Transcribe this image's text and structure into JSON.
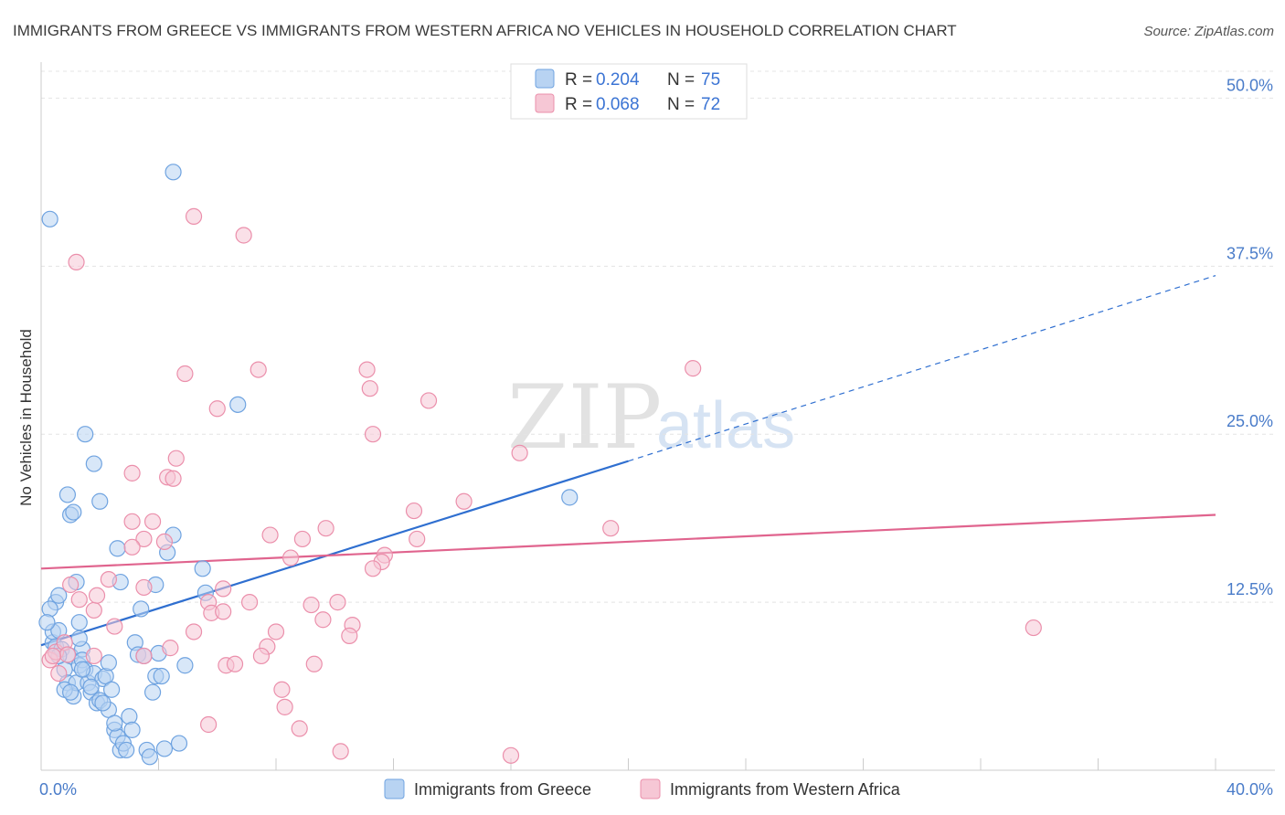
{
  "chart_data": {
    "type": "scatter",
    "title": "IMMIGRANTS FROM GREECE VS IMMIGRANTS FROM WESTERN AFRICA NO VEHICLES IN HOUSEHOLD CORRELATION CHART",
    "source": "Source: ZipAtlas.com",
    "xlabel": "",
    "ylabel": "No Vehicles in Household",
    "xlim": [
      0,
      40
    ],
    "ylim": [
      0,
      52
    ],
    "x_ticks": [
      0,
      40
    ],
    "x_tick_labels": [
      "0.0%",
      "40.0%"
    ],
    "y_ticks": [
      12.5,
      25,
      37.5,
      50
    ],
    "y_tick_labels": [
      "12.5%",
      "25.0%",
      "37.5%",
      "50.0%"
    ],
    "grid": true,
    "watermark": {
      "zip": "ZIP",
      "atlas": "atlas"
    },
    "legend": {
      "position": "top-center",
      "rows": [
        {
          "r_label": "R = ",
          "r_value": "0.204",
          "n_label": "N = ",
          "n_value": "75"
        },
        {
          "r_label": "R = ",
          "r_value": "0.068",
          "n_label": "N = ",
          "n_value": "72"
        }
      ]
    },
    "series": [
      {
        "name": "Immigrants from Greece",
        "color": "#6fa3e0",
        "fill": "#b8d3f2",
        "line_color": "#2f6fd0",
        "trend": {
          "x0": 0,
          "y0": 9.3,
          "x1": 20,
          "y1": 23.0,
          "dash_to_x": 40,
          "dash_to_y": 36.8
        },
        "points": [
          [
            0.3,
            41
          ],
          [
            0.4,
            9.5
          ],
          [
            0.5,
            12.5
          ],
          [
            0.6,
            13
          ],
          [
            0.4,
            10.3
          ],
          [
            0.5,
            9.2
          ],
          [
            0.6,
            10.4
          ],
          [
            0.7,
            9
          ],
          [
            0.8,
            7.5
          ],
          [
            0.9,
            6.5
          ],
          [
            1,
            8.5
          ],
          [
            1.1,
            5.5
          ],
          [
            1.2,
            6.5
          ],
          [
            1.3,
            7.8
          ],
          [
            1.4,
            9
          ],
          [
            0.3,
            12
          ],
          [
            0.2,
            11
          ],
          [
            0.9,
            20.5
          ],
          [
            1,
            19
          ],
          [
            1.1,
            19.2
          ],
          [
            1.2,
            14
          ],
          [
            1.3,
            9.8
          ],
          [
            1.4,
            8.2
          ],
          [
            1.5,
            7.5
          ],
          [
            1.6,
            6.5
          ],
          [
            1.7,
            5.8
          ],
          [
            1.8,
            7.2
          ],
          [
            1.9,
            5
          ],
          [
            2,
            5.2
          ],
          [
            2.1,
            6.8
          ],
          [
            2.2,
            7
          ],
          [
            2.3,
            4.5
          ],
          [
            2.4,
            6
          ],
          [
            2.5,
            3
          ],
          [
            2.6,
            2.5
          ],
          [
            2.7,
            1.5
          ],
          [
            2.8,
            2
          ],
          [
            2.9,
            1.5
          ],
          [
            3,
            4
          ],
          [
            3.1,
            3
          ],
          [
            3.2,
            9.5
          ],
          [
            3.3,
            8.6
          ],
          [
            3.4,
            12
          ],
          [
            3.5,
            8.5
          ],
          [
            3.6,
            1.5
          ],
          [
            3.7,
            1
          ],
          [
            3.8,
            5.8
          ],
          [
            3.9,
            7
          ],
          [
            4,
            8.7
          ],
          [
            4.1,
            7
          ],
          [
            4.2,
            1.6
          ],
          [
            4.3,
            16.2
          ],
          [
            4.5,
            17.5
          ],
          [
            4.7,
            2
          ],
          [
            4.9,
            7.8
          ],
          [
            1.5,
            25
          ],
          [
            1.8,
            22.8
          ],
          [
            2.0,
            20
          ],
          [
            2.6,
            16.5
          ],
          [
            2.7,
            14
          ],
          [
            1.3,
            11
          ],
          [
            1.4,
            7.5
          ],
          [
            0.8,
            6.0
          ],
          [
            1.0,
            5.8
          ],
          [
            1.7,
            6.2
          ],
          [
            2.1,
            5.0
          ],
          [
            2.3,
            8.0
          ],
          [
            3.9,
            13.8
          ],
          [
            5.5,
            15.0
          ],
          [
            5.6,
            13.2
          ],
          [
            4.5,
            44.5
          ],
          [
            6.7,
            27.2
          ],
          [
            18,
            20.3
          ],
          [
            2.5,
            3.5
          ],
          [
            0.6,
            8.5
          ]
        ]
      },
      {
        "name": "Immigrants from Western Africa",
        "color": "#eb8fab",
        "fill": "#f6c7d5",
        "line_color": "#e0648e",
        "trend": {
          "x0": 0,
          "y0": 15.0,
          "x1": 40,
          "y1": 19.0
        },
        "points": [
          [
            1.2,
            37.8
          ],
          [
            5.2,
            41.2
          ],
          [
            6.9,
            39.8
          ],
          [
            4.9,
            29.5
          ],
          [
            7.4,
            29.8
          ],
          [
            11.1,
            29.8
          ],
          [
            11.2,
            28.4
          ],
          [
            13.2,
            27.5
          ],
          [
            22.2,
            29.9
          ],
          [
            6.0,
            26.9
          ],
          [
            11.3,
            25.0
          ],
          [
            16.3,
            23.6
          ],
          [
            4.6,
            23.2
          ],
          [
            3.1,
            22.1
          ],
          [
            4.3,
            21.8
          ],
          [
            4.5,
            21.7
          ],
          [
            12.7,
            19.3
          ],
          [
            14.4,
            20.0
          ],
          [
            3.1,
            18.5
          ],
          [
            3.8,
            18.5
          ],
          [
            7.8,
            17.5
          ],
          [
            8.9,
            17.2
          ],
          [
            9.7,
            18.0
          ],
          [
            12.8,
            17.2
          ],
          [
            19.4,
            18.0
          ],
          [
            3.5,
            17.2
          ],
          [
            4.2,
            17.0
          ],
          [
            3.1,
            16.6
          ],
          [
            8.5,
            15.8
          ],
          [
            11.7,
            16.0
          ],
          [
            11.6,
            15.5
          ],
          [
            11.3,
            15.0
          ],
          [
            2.3,
            14.2
          ],
          [
            1.0,
            13.8
          ],
          [
            1.3,
            12.7
          ],
          [
            3.5,
            13.6
          ],
          [
            6.2,
            13.5
          ],
          [
            5.7,
            12.5
          ],
          [
            7.1,
            12.5
          ],
          [
            9.2,
            12.3
          ],
          [
            10.1,
            12.5
          ],
          [
            1.8,
            11.9
          ],
          [
            5.8,
            11.7
          ],
          [
            6.2,
            11.8
          ],
          [
            9.6,
            11.2
          ],
          [
            10.6,
            10.8
          ],
          [
            2.5,
            10.7
          ],
          [
            5.2,
            10.3
          ],
          [
            8.0,
            10.3
          ],
          [
            10.5,
            10.0
          ],
          [
            1.8,
            8.5
          ],
          [
            3.5,
            8.5
          ],
          [
            4.4,
            9.1
          ],
          [
            7.7,
            9.2
          ],
          [
            7.5,
            8.5
          ],
          [
            6.3,
            7.8
          ],
          [
            6.6,
            7.9
          ],
          [
            9.3,
            7.9
          ],
          [
            8.2,
            6.0
          ],
          [
            8.3,
            4.7
          ],
          [
            8.8,
            3.1
          ],
          [
            5.7,
            3.4
          ],
          [
            10.2,
            1.4
          ],
          [
            16.0,
            1.1
          ],
          [
            33.8,
            10.6
          ],
          [
            0.3,
            8.2
          ],
          [
            0.5,
            8.8
          ],
          [
            0.8,
            9.5
          ],
          [
            0.9,
            8.6
          ],
          [
            0.6,
            7.2
          ],
          [
            0.4,
            8.5
          ],
          [
            1.9,
            13.0
          ]
        ]
      }
    ]
  }
}
